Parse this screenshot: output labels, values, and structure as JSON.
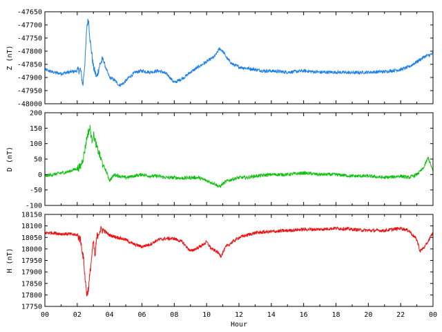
{
  "chart_data": [
    {
      "type": "line",
      "ylabel": "Z (nT)",
      "ylim": [
        -48000,
        -47650
      ],
      "yticks": [
        -48000,
        -47950,
        -47900,
        -47850,
        -47800,
        -47750,
        -47700,
        -47650
      ],
      "xlim": [
        0,
        24
      ],
      "series": [
        {
          "color": "#1e7fe8",
          "x": [
            0,
            0.5,
            1,
            1.5,
            2,
            2.2,
            2.35,
            2.5,
            2.6,
            2.7,
            2.8,
            2.9,
            3.0,
            3.2,
            3.4,
            3.6,
            3.8,
            4.0,
            4.3,
            4.6,
            4.9,
            5.2,
            5.6,
            6.0,
            6.5,
            7.0,
            7.3,
            7.6,
            8.0,
            8.3,
            8.6,
            9.0,
            9.5,
            10.0,
            10.5,
            10.8,
            11.0,
            11.3,
            11.6,
            12.0,
            12.5,
            13.0,
            13.5,
            14.0,
            15.0,
            16.0,
            17.0,
            18.0,
            19.0,
            20.0,
            21.0,
            22.0,
            22.5,
            23.0,
            23.5,
            24.0
          ],
          "values": [
            -47870,
            -47880,
            -47885,
            -47880,
            -47875,
            -47870,
            -47930,
            -47820,
            -47700,
            -47680,
            -47760,
            -47810,
            -47860,
            -47900,
            -47850,
            -47830,
            -47870,
            -47900,
            -47910,
            -47930,
            -47920,
            -47900,
            -47880,
            -47875,
            -47880,
            -47875,
            -47880,
            -47890,
            -47920,
            -47910,
            -47900,
            -47880,
            -47860,
            -47840,
            -47820,
            -47790,
            -47800,
            -47830,
            -47850,
            -47860,
            -47865,
            -47870,
            -47875,
            -47875,
            -47880,
            -47875,
            -47880,
            -47880,
            -47882,
            -47880,
            -47878,
            -47870,
            -47860,
            -47840,
            -47820,
            -47810
          ]
        }
      ]
    },
    {
      "type": "line",
      "ylabel": "D (nT)",
      "ylim": [
        -100,
        200
      ],
      "yticks": [
        -100,
        -50,
        0,
        50,
        100,
        150,
        200
      ],
      "xlim": [
        0,
        24
      ],
      "series": [
        {
          "color": "#10c010",
          "x": [
            0,
            0.5,
            1,
            1.5,
            2,
            2.2,
            2.4,
            2.6,
            2.7,
            2.8,
            2.9,
            3.0,
            3.2,
            3.4,
            3.6,
            3.8,
            4.0,
            4.3,
            4.6,
            5.0,
            5.5,
            6.0,
            6.5,
            7.0,
            7.5,
            8.0,
            8.5,
            9.0,
            9.5,
            10.0,
            10.5,
            10.8,
            11.0,
            11.3,
            11.6,
            12.0,
            12.5,
            13.0,
            14.0,
            15.0,
            16.0,
            17.0,
            18.0,
            19.0,
            20.0,
            21.0,
            22.0,
            22.5,
            23.0,
            23.4,
            23.7,
            24.0
          ],
          "values": [
            -5,
            0,
            5,
            10,
            20,
            25,
            60,
            120,
            140,
            150,
            110,
            130,
            90,
            60,
            30,
            10,
            -20,
            0,
            -5,
            -10,
            -5,
            0,
            -5,
            -5,
            -10,
            -10,
            -12,
            -10,
            -10,
            -20,
            -30,
            -40,
            -30,
            -20,
            -15,
            -10,
            -10,
            -5,
            0,
            0,
            5,
            0,
            0,
            -5,
            -5,
            -10,
            -5,
            -10,
            0,
            20,
            55,
            10
          ]
        }
      ]
    },
    {
      "type": "line",
      "ylabel": "H (nT)",
      "ylim": [
        17750,
        18150
      ],
      "yticks": [
        17750,
        17800,
        17850,
        17900,
        17950,
        18000,
        18050,
        18100,
        18150
      ],
      "xlim": [
        0,
        24
      ],
      "xticks": [
        "00",
        "02",
        "04",
        "06",
        "08",
        "10",
        "12",
        "14",
        "16",
        "18",
        "20",
        "22",
        "00"
      ],
      "xlabel": "Hour",
      "series": [
        {
          "color": "#ee1010",
          "x": [
            0,
            0.5,
            1,
            1.5,
            2,
            2.2,
            2.4,
            2.5,
            2.6,
            2.7,
            2.8,
            2.9,
            3.0,
            3.1,
            3.2,
            3.4,
            3.6,
            3.8,
            4.0,
            4.5,
            5.0,
            5.5,
            6.0,
            6.5,
            7.0,
            7.5,
            8.0,
            8.5,
            9.0,
            9.3,
            9.6,
            10.0,
            10.3,
            10.6,
            10.9,
            11.2,
            11.6,
            12.0,
            12.5,
            13.0,
            14.0,
            15.0,
            16.0,
            17.0,
            18.0,
            19.0,
            20.0,
            21.0,
            22.0,
            22.5,
            23.0,
            23.2,
            23.5,
            24.0
          ],
          "values": [
            18070,
            18070,
            18065,
            18065,
            18060,
            18040,
            17950,
            17860,
            17800,
            17830,
            17900,
            17970,
            18030,
            17960,
            18050,
            18080,
            18085,
            18070,
            18060,
            18050,
            18040,
            18020,
            18010,
            18020,
            18040,
            18045,
            18045,
            18030,
            17990,
            18000,
            18010,
            18030,
            18000,
            17990,
            17970,
            18010,
            18030,
            18050,
            18060,
            18070,
            18075,
            18080,
            18085,
            18085,
            18090,
            18085,
            18080,
            18080,
            18090,
            18080,
            18040,
            17990,
            18010,
            18070
          ]
        }
      ]
    }
  ]
}
